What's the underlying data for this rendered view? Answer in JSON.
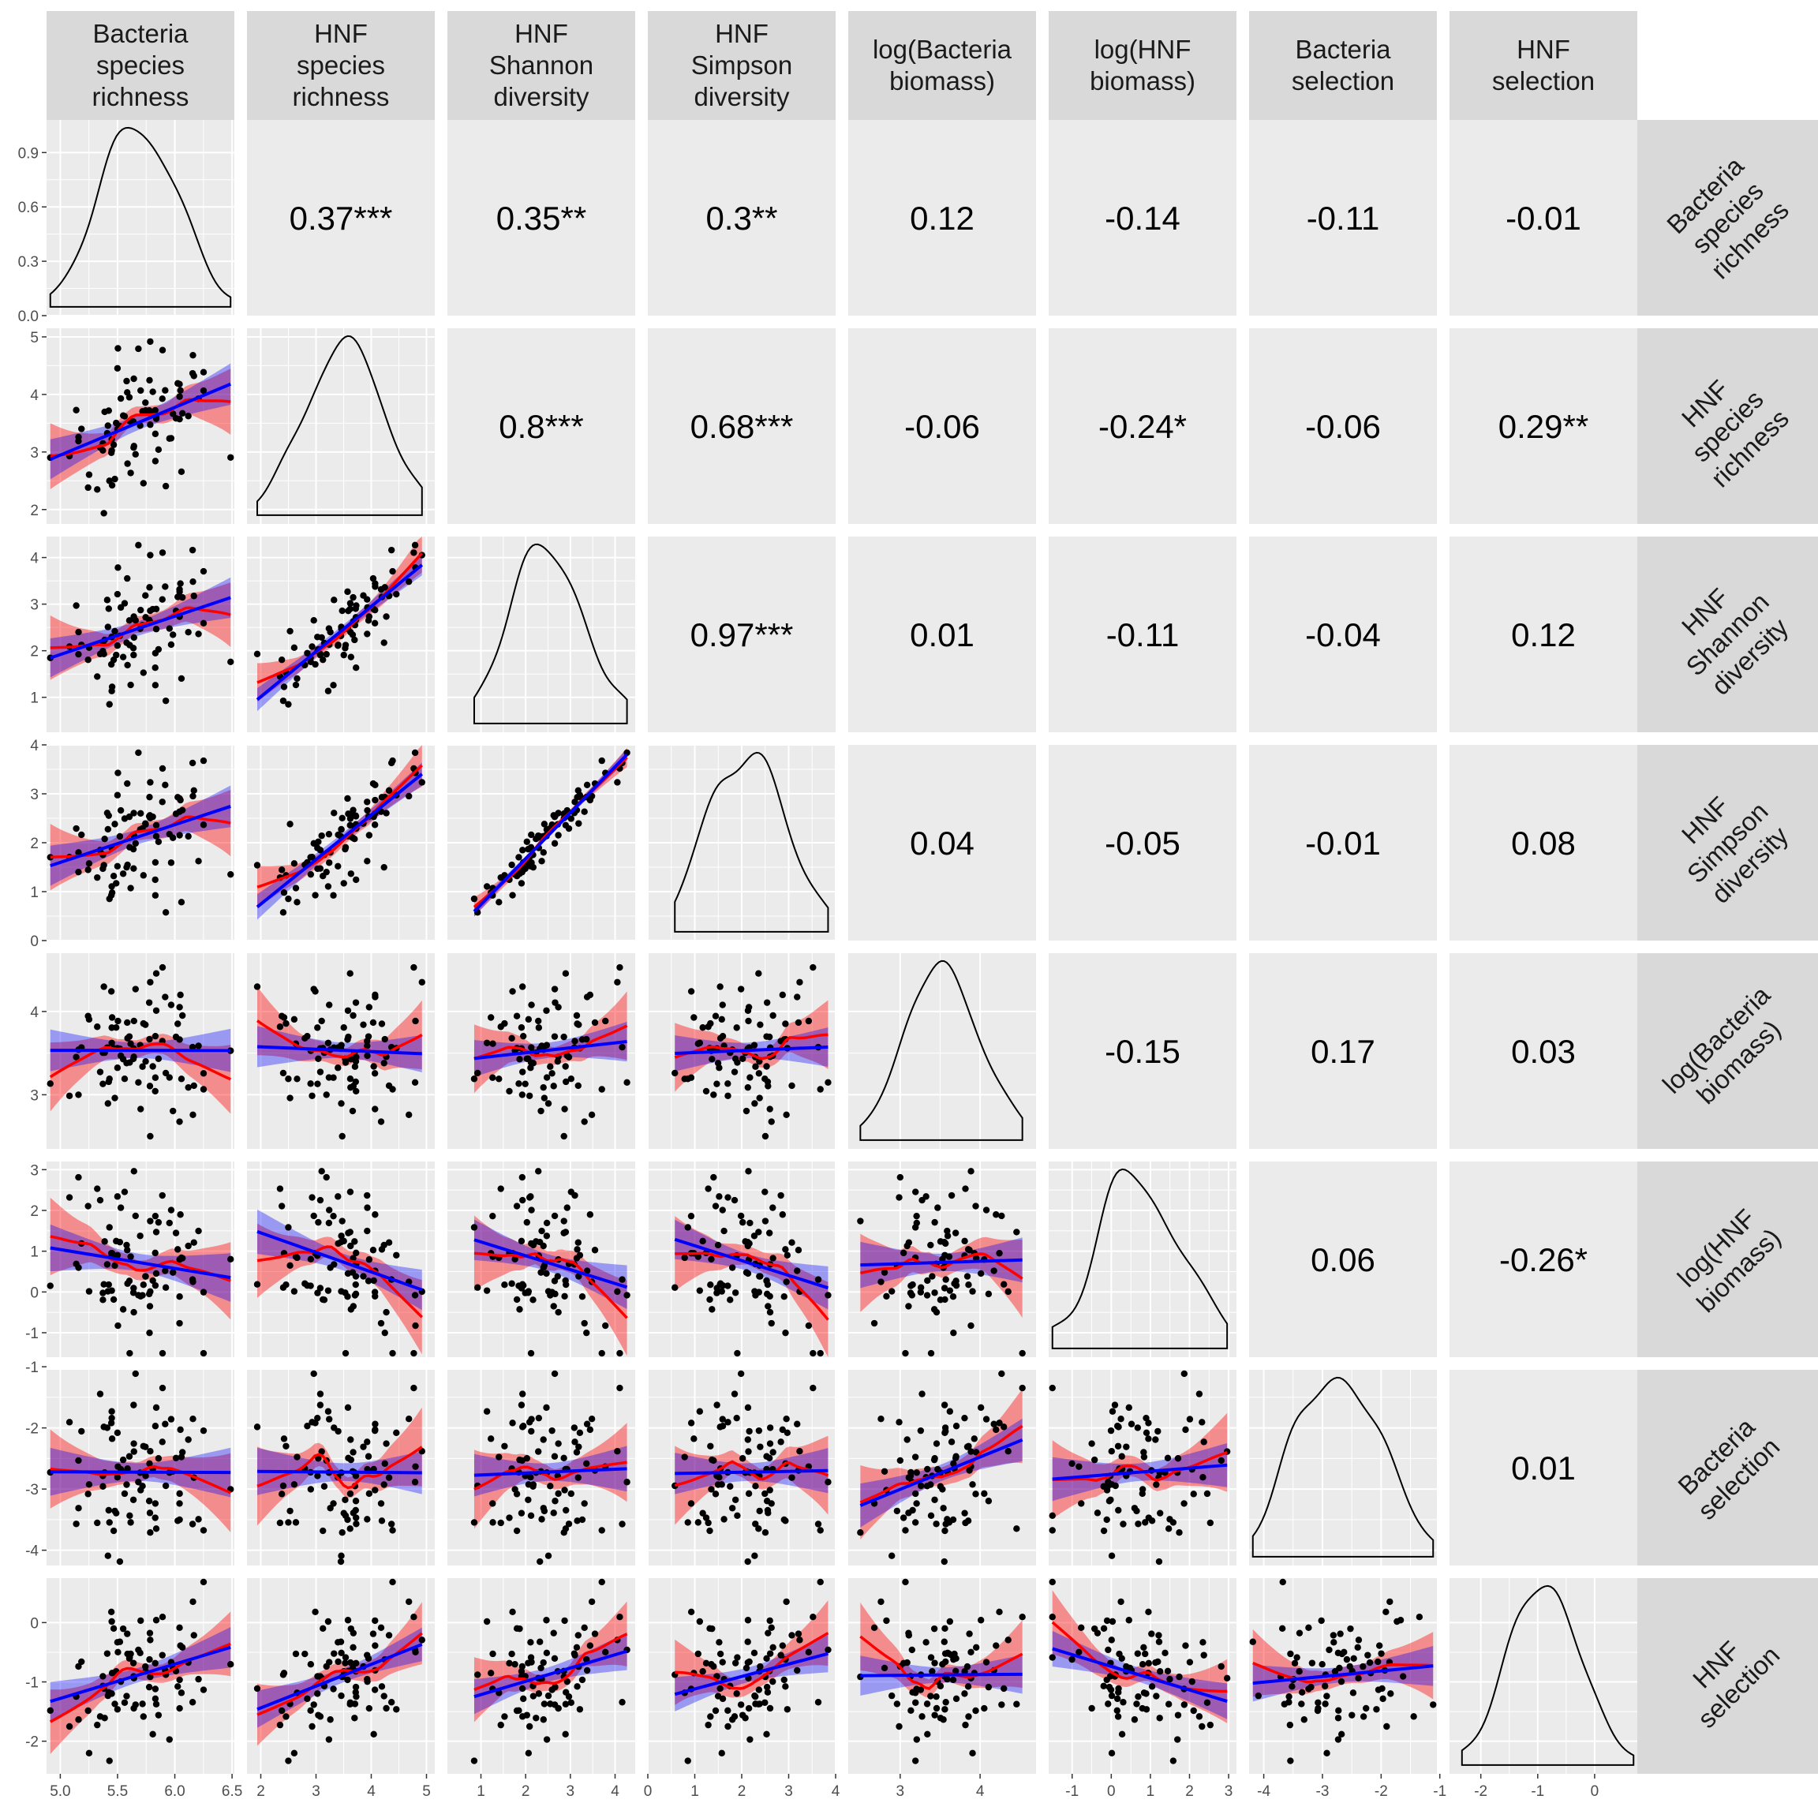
{
  "chart_data": {
    "type": "scatter",
    "subtype": "pairs-matrix",
    "variables": [
      "Bacteria species richness",
      "HNF species richness",
      "HNF Shannon diversity",
      "HNF Simpson diversity",
      "log(Bacteria biomass)",
      "log(HNF biomass)",
      "Bacteria selection",
      "HNF selection"
    ],
    "column_headers": [
      [
        "Bacteria",
        "species",
        "richness"
      ],
      [
        "HNF",
        "species",
        "richness"
      ],
      [
        "HNF",
        "Shannon",
        "diversity"
      ],
      [
        "HNF",
        "Simpson",
        "diversity"
      ],
      [
        "log(Bacteria",
        "biomass)"
      ],
      [
        "log(HNF",
        "biomass)"
      ],
      [
        "Bacteria",
        "selection"
      ],
      [
        "HNF",
        "selection"
      ]
    ],
    "row_headers": [
      [
        "Bacteria",
        "species",
        "richness"
      ],
      [
        "HNF",
        "species",
        "richness"
      ],
      [
        "HNF",
        "Shannon",
        "diversity"
      ],
      [
        "HNF",
        "Simpson",
        "diversity"
      ],
      [
        "log(Bacteria",
        "biomass)"
      ],
      [
        "log(HNF",
        "biomass)"
      ],
      [
        "Bacteria",
        "selection"
      ],
      [
        "HNF",
        "selection"
      ]
    ],
    "ranges": [
      [
        4.88,
        6.52
      ],
      [
        1.75,
        5.15
      ],
      [
        0.25,
        4.45
      ],
      [
        0.0,
        4.0
      ],
      [
        2.35,
        4.7
      ],
      [
        -1.6,
        3.2
      ],
      [
        -4.25,
        -1.05
      ],
      [
        -2.55,
        0.75
      ]
    ],
    "x_ticks": [
      [
        "5.0",
        "5.5",
        "6.0",
        "6.5"
      ],
      [
        "2",
        "3",
        "4",
        "5"
      ],
      [
        "1",
        "2",
        "3",
        "4"
      ],
      [
        "0",
        "1",
        "2",
        "3",
        "4"
      ],
      [
        "3",
        "4"
      ],
      [
        "-1",
        "0",
        "1",
        "2",
        "3"
      ],
      [
        "-4",
        "-3",
        "-2",
        "-1"
      ],
      [
        "-2",
        "-1",
        "0"
      ]
    ],
    "y_ticks": [
      [
        "0.0",
        "0.3",
        "0.6",
        "0.9"
      ],
      [
        "2",
        "3",
        "4",
        "5"
      ],
      [
        "1",
        "2",
        "3",
        "4"
      ],
      [
        "0",
        "1",
        "2",
        "3",
        "4"
      ],
      [
        "3",
        "4"
      ],
      [
        "-1",
        "0",
        "1",
        "2",
        "3"
      ],
      [
        "-4",
        "-3",
        "-2",
        "-1"
      ],
      [
        "-2",
        "-1",
        "0"
      ]
    ],
    "density_y_range": [
      0,
      1.08
    ],
    "correlations": [
      [
        "",
        "0.37***",
        "0.35**",
        "0.3**",
        "0.12",
        "-0.14",
        "-0.11",
        "-0.01"
      ],
      [
        "",
        "",
        "0.8***",
        "0.68***",
        "-0.06",
        "-0.24*",
        "-0.06",
        "0.29**"
      ],
      [
        "",
        "",
        "",
        "0.97***",
        "0.01",
        "-0.11",
        "-0.04",
        "0.12"
      ],
      [
        "",
        "",
        "",
        "",
        "0.04",
        "-0.05",
        "-0.01",
        "0.08"
      ],
      [
        "",
        "",
        "",
        "",
        "",
        "-0.15",
        "0.17",
        "0.03"
      ],
      [
        "",
        "",
        "",
        "",
        "",
        "",
        "0.06",
        "-0.26*"
      ],
      [
        "",
        "",
        "",
        "",
        "",
        "",
        "",
        "0.01"
      ],
      [
        "",
        "",
        "",
        "",
        "",
        "",
        "",
        ""
      ]
    ],
    "linear_fit_color": "#0000ff",
    "smooth_fit_color": "#ff0000",
    "point_color": "#000000",
    "panel_background": "#ebebeb",
    "strip_background": "#d9d9d9",
    "grid": true
  }
}
